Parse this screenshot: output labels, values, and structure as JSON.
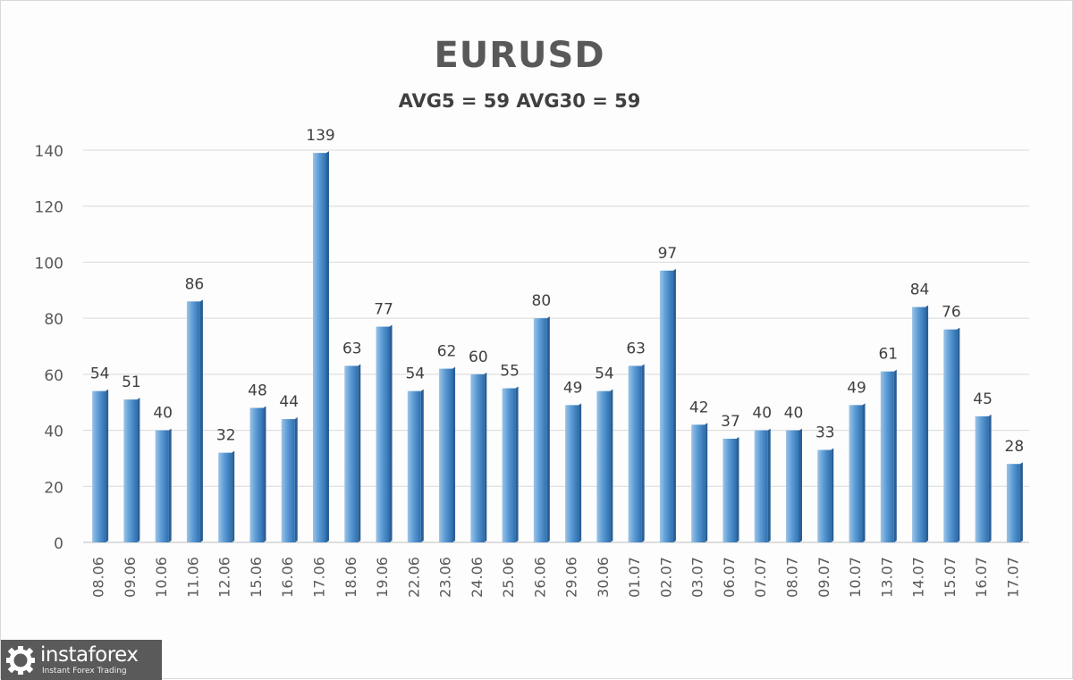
{
  "chart_data": {
    "type": "bar",
    "title": "EURUSD",
    "subtitle": "AVG5 = 59 AVG30 = 59",
    "categories": [
      "08.06",
      "09.06",
      "10.06",
      "11.06",
      "12.06",
      "15.06",
      "16.06",
      "17.06",
      "18.06",
      "19.06",
      "22.06",
      "23.06",
      "24.06",
      "25.06",
      "26.06",
      "29.06",
      "30.06",
      "01.07",
      "02.07",
      "03.07",
      "06.07",
      "07.07",
      "08.07",
      "09.07",
      "10.07",
      "13.07",
      "14.07",
      "15.07",
      "16.07",
      "17.07"
    ],
    "values": [
      54,
      51,
      40,
      86,
      32,
      48,
      44,
      139,
      63,
      77,
      54,
      62,
      60,
      55,
      80,
      49,
      54,
      63,
      97,
      42,
      37,
      40,
      40,
      33,
      49,
      61,
      84,
      76,
      45,
      28
    ],
    "ylim": [
      0,
      140
    ],
    "yticks": [
      0,
      20,
      40,
      60,
      80,
      100,
      120,
      140
    ],
    "grid": true,
    "data_labels": true,
    "bar_color": "#5b9bd5"
  },
  "logo": {
    "name": "instaforex",
    "tagline": "Instant Forex Trading"
  }
}
